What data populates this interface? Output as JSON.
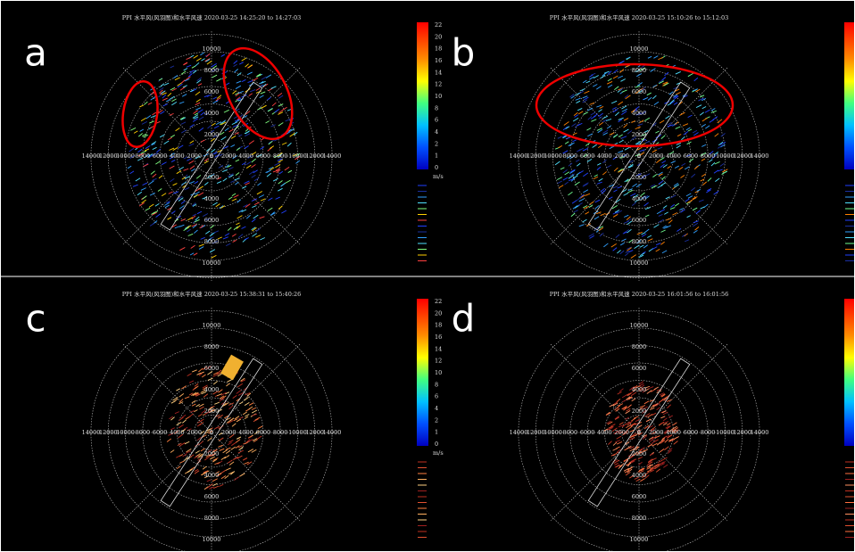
{
  "panels": [
    {
      "letter": "a",
      "title": "PPI 水平风(风羽图)和水平风速 2020-03-25 14:25:20 to 14:27:03"
    },
    {
      "letter": "b",
      "title": "PPI 水平风(风羽图)和水平风速 2020-03-25 15:10:26 to 15:12:03"
    },
    {
      "letter": "c",
      "title": "PPI 水平风(风羽图)和水平风速 2020-03-25 15:38:31 to 15:40:26"
    },
    {
      "letter": "d",
      "title": "PPI 水平风(风羽图)和水平风速 2020-03-25 16:01:56 to 16:01:56"
    }
  ],
  "x_labels": [
    "14000",
    "12000",
    "10000",
    "8000",
    "6000",
    "4000",
    "2000",
    "0",
    "2000",
    "4000",
    "6000",
    "8000",
    "10000",
    "12000",
    "14000"
  ],
  "y_labels": [
    "10000",
    "8000",
    "6000",
    "4000",
    "2000",
    "0",
    "2000",
    "4000",
    "6000",
    "8000",
    "10000"
  ],
  "colorbar": {
    "ticks": [
      "22",
      "20",
      "18",
      "16",
      "14",
      "12",
      "10",
      "8",
      "6",
      "4",
      "2",
      "1",
      "0"
    ],
    "unit": "m/s"
  }
}
